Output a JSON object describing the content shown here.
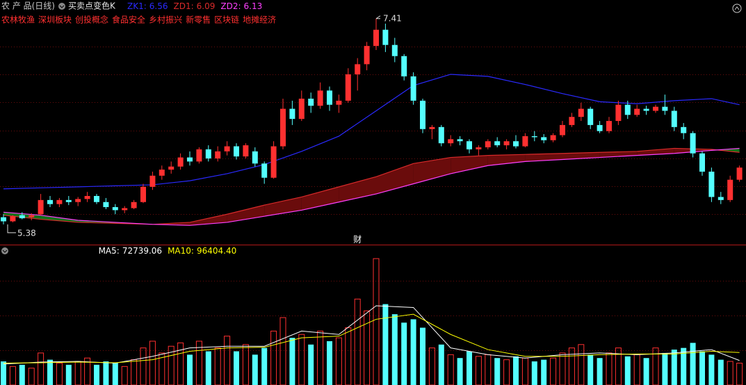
{
  "header": {
    "name": "农 产 品(日线)",
    "indicator": "买卖点变色K"
  },
  "sectors": [
    "农林牧渔",
    "深圳板块",
    "创投概念",
    "食品安全",
    "乡村振兴",
    "新零售",
    "区块链",
    "地摊经济"
  ],
  "chart_data": [
    {
      "type": "candlestick",
      "ylim": [
        5.18,
        7.47
      ],
      "up_color": "#ff3030",
      "down_color": "#54ffff",
      "band_colors": [
        "#6a0c0c",
        "#12701a"
      ],
      "open": [
        5.45,
        5.41,
        5.47,
        5.45,
        5.48,
        5.62,
        5.58,
        5.62,
        5.6,
        5.63,
        5.66,
        5.6,
        5.55,
        5.52,
        5.54,
        5.6,
        5.75,
        5.86,
        5.92,
        5.95,
        6.04,
        6.0,
        6.12,
        6.03,
        6.1,
        6.15,
        6.05,
        6.1,
        5.98,
        5.84,
        6.15,
        6.52,
        6.42,
        6.62,
        6.55,
        6.7,
        6.56,
        6.6,
        6.86,
        6.96,
        7.14,
        7.3,
        7.15,
        7.04,
        6.84,
        6.6,
        6.32,
        6.34,
        6.18,
        6.22,
        6.2,
        6.12,
        6.14,
        6.2,
        6.16,
        6.2,
        6.15,
        6.25,
        6.24,
        6.21,
        6.26,
        6.36,
        6.44,
        6.52,
        6.36,
        6.3,
        6.4,
        6.56,
        6.46,
        6.52,
        6.5,
        6.54,
        6.5,
        6.34,
        6.28,
        6.08,
        5.9,
        5.65,
        5.62,
        5.82
      ],
      "high": [
        5.48,
        5.47,
        5.5,
        5.49,
        5.68,
        5.66,
        5.64,
        5.66,
        5.65,
        5.7,
        5.68,
        5.64,
        5.58,
        5.56,
        5.62,
        5.78,
        5.9,
        5.96,
        6.0,
        6.08,
        6.1,
        6.14,
        6.16,
        6.15,
        6.2,
        6.18,
        6.18,
        6.14,
        6.0,
        6.2,
        6.62,
        6.6,
        6.7,
        6.68,
        6.78,
        6.74,
        6.66,
        6.92,
        7.02,
        7.18,
        7.41,
        7.36,
        7.22,
        7.06,
        6.88,
        6.62,
        6.36,
        6.36,
        6.26,
        6.25,
        6.22,
        6.16,
        6.22,
        6.24,
        6.22,
        6.26,
        6.28,
        6.3,
        6.27,
        6.28,
        6.4,
        6.48,
        6.58,
        6.54,
        6.4,
        6.44,
        6.6,
        6.6,
        6.56,
        6.55,
        6.56,
        6.66,
        6.54,
        6.38,
        6.3,
        6.1,
        5.94,
        5.7,
        5.86,
        5.96
      ],
      "low": [
        5.38,
        5.4,
        5.43,
        5.42,
        5.47,
        5.55,
        5.55,
        5.57,
        5.56,
        5.6,
        5.58,
        5.53,
        5.48,
        5.49,
        5.53,
        5.59,
        5.72,
        5.82,
        5.88,
        5.92,
        5.96,
        5.98,
        6.0,
        6.0,
        6.06,
        6.02,
        6.03,
        5.95,
        5.78,
        5.83,
        6.12,
        6.36,
        6.4,
        6.48,
        6.52,
        6.5,
        6.48,
        6.58,
        6.7,
        6.9,
        7.1,
        7.08,
        6.98,
        6.8,
        6.56,
        6.28,
        6.22,
        6.15,
        6.15,
        6.16,
        6.08,
        6.06,
        6.12,
        6.14,
        6.12,
        6.13,
        6.14,
        6.2,
        6.18,
        6.19,
        6.24,
        6.34,
        6.4,
        6.32,
        6.28,
        6.28,
        6.36,
        6.42,
        6.44,
        6.46,
        6.48,
        6.46,
        6.3,
        6.22,
        6.04,
        5.86,
        5.6,
        5.58,
        5.6,
        5.8
      ],
      "close": [
        5.41,
        5.46,
        5.44,
        5.47,
        5.62,
        5.58,
        5.62,
        5.6,
        5.63,
        5.66,
        5.6,
        5.55,
        5.52,
        5.54,
        5.6,
        5.75,
        5.86,
        5.92,
        5.95,
        6.04,
        6.0,
        6.12,
        6.03,
        6.1,
        6.15,
        6.05,
        6.16,
        5.98,
        5.84,
        6.15,
        6.52,
        6.42,
        6.62,
        6.55,
        6.7,
        6.56,
        6.6,
        6.86,
        6.96,
        7.14,
        7.3,
        7.15,
        7.04,
        6.84,
        6.6,
        6.32,
        6.34,
        6.18,
        6.22,
        6.2,
        6.12,
        6.14,
        6.2,
        6.16,
        6.2,
        6.15,
        6.25,
        6.24,
        6.21,
        6.26,
        6.36,
        6.44,
        6.52,
        6.36,
        6.3,
        6.4,
        6.56,
        6.46,
        6.52,
        6.5,
        6.54,
        6.5,
        6.34,
        6.28,
        6.08,
        5.9,
        5.65,
        5.62,
        5.82,
        5.94
      ],
      "series": [
        {
          "name": "ZK1:",
          "color": "#2a2aff",
          "current": 6.56,
          "x": [
            0,
            4,
            8,
            12,
            16,
            20,
            24,
            28,
            32,
            36,
            40,
            44,
            48,
            52,
            56,
            60,
            64,
            68,
            72,
            76,
            79
          ],
          "values": [
            5.73,
            5.74,
            5.75,
            5.76,
            5.77,
            5.81,
            5.88,
            5.97,
            6.1,
            6.25,
            6.5,
            6.75,
            6.86,
            6.84,
            6.76,
            6.67,
            6.59,
            6.57,
            6.6,
            6.62,
            6.56
          ]
        },
        {
          "name": "ZD1:",
          "color": "#d82a2a",
          "current": 6.09,
          "x": [
            0,
            4,
            8,
            12,
            16,
            20,
            24,
            28,
            32,
            36,
            40,
            44,
            48,
            52,
            56,
            60,
            64,
            68,
            72,
            76,
            79
          ],
          "values": [
            5.47,
            5.43,
            5.4,
            5.39,
            5.38,
            5.4,
            5.48,
            5.57,
            5.65,
            5.75,
            5.85,
            5.98,
            6.04,
            6.06,
            6.07,
            6.08,
            6.09,
            6.1,
            6.13,
            6.12,
            6.09
          ]
        },
        {
          "name": "ZD2:",
          "color": "#ff40ff",
          "current": 6.13,
          "x": [
            0,
            4,
            8,
            12,
            16,
            20,
            24,
            28,
            32,
            36,
            40,
            44,
            48,
            52,
            56,
            60,
            64,
            68,
            72,
            76,
            79
          ],
          "values": [
            5.5,
            5.47,
            5.42,
            5.4,
            5.38,
            5.37,
            5.4,
            5.46,
            5.52,
            5.6,
            5.68,
            5.78,
            5.88,
            5.96,
            6.0,
            6.02,
            6.04,
            6.06,
            6.08,
            6.11,
            6.13
          ]
        }
      ],
      "annotations": [
        {
          "index": 38,
          "text": "财"
        }
      ]
    },
    {
      "type": "bar",
      "name": "VOLUME:",
      "current": 64781.84,
      "ylim": [
        0,
        400000
      ],
      "values": [
        70000,
        55000,
        60000,
        50000,
        95000,
        75000,
        65000,
        60000,
        70000,
        80000,
        60000,
        70000,
        65000,
        55000,
        75000,
        110000,
        130000,
        95000,
        115000,
        125000,
        90000,
        130000,
        100000,
        110000,
        145000,
        100000,
        120000,
        90000,
        110000,
        160000,
        200000,
        140000,
        150000,
        120000,
        160000,
        130000,
        140000,
        170000,
        255000,
        220000,
        375000,
        240000,
        210000,
        185000,
        195000,
        170000,
        110000,
        120000,
        90000,
        80000,
        100000,
        85000,
        90000,
        80000,
        75000,
        85000,
        80000,
        70000,
        75000,
        80000,
        95000,
        110000,
        120000,
        90000,
        80000,
        95000,
        110000,
        85000,
        90000,
        80000,
        110000,
        95000,
        105000,
        110000,
        125000,
        100000,
        90000,
        75000,
        70000,
        64781.84
      ],
      "series": [
        {
          "name": "MA5:",
          "color": "#ffffff",
          "current": 72739.06,
          "x": [
            0,
            4,
            8,
            12,
            16,
            20,
            24,
            28,
            32,
            36,
            40,
            44,
            48,
            52,
            56,
            60,
            64,
            68,
            72,
            76,
            79
          ],
          "values": [
            62000,
            68000,
            70000,
            65000,
            85000,
            110000,
            115000,
            115000,
            160000,
            150000,
            235000,
            230000,
            110000,
            90000,
            80000,
            90000,
            95000,
            90000,
            95000,
            105000,
            72739.06
          ]
        },
        {
          "name": "MA10:",
          "color": "#ffff00",
          "current": {
            "value": 96404.4,
            "label": "96404.40"
          },
          "x": [
            0,
            4,
            8,
            12,
            16,
            20,
            24,
            28,
            32,
            36,
            40,
            44,
            48,
            52,
            56,
            60,
            64,
            68,
            72,
            76,
            79
          ],
          "values": [
            65000,
            66000,
            68000,
            66000,
            75000,
            100000,
            110000,
            112000,
            140000,
            145000,
            195000,
            210000,
            150000,
            105000,
            85000,
            85000,
            90000,
            92000,
            92000,
            100000,
            96404.4
          ]
        }
      ]
    }
  ]
}
